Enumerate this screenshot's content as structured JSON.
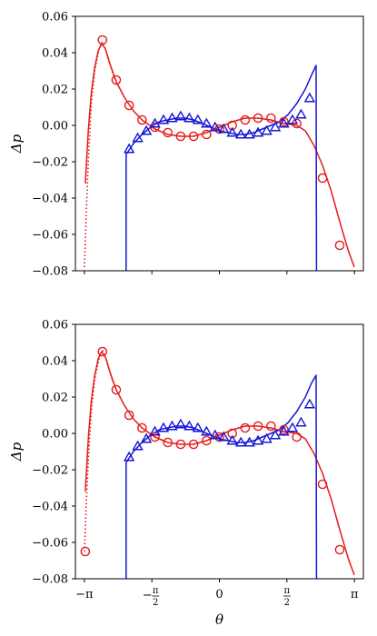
{
  "colors": {
    "red": "#e8191b",
    "blue": "#1515d6",
    "axis": "#000000"
  },
  "chart_data": [
    {
      "type": "line",
      "xlabel": "",
      "ylabel": "Δp",
      "xlim": [
        -3.35,
        3.35
      ],
      "ylim": [
        -0.08,
        0.06
      ],
      "yticks": [
        -0.08,
        -0.06,
        -0.04,
        -0.02,
        0.0,
        0.02,
        0.04,
        0.06
      ],
      "ytick_labels": [
        "−0.08",
        "−0.06",
        "−0.04",
        "−0.02",
        "0.00",
        "0.02",
        "0.04",
        "0.06"
      ],
      "xticks": [
        -3.1416,
        -1.5708,
        0,
        1.5708,
        3.1416
      ],
      "xtick_labels": [
        "",
        "",
        "",
        "",
        ""
      ],
      "grid": false,
      "series": [
        {
          "color": "red",
          "style": "solid",
          "marker": null,
          "x": [
            -3.12,
            -3.05,
            -2.98,
            -2.9,
            -2.82,
            -2.74,
            -2.65,
            -2.55,
            -2.4,
            -2.2,
            -2.0,
            -1.8,
            -1.5,
            -1.2,
            -0.9,
            -0.6,
            -0.3,
            0.0,
            0.3,
            0.6,
            0.9,
            1.2,
            1.5,
            1.8,
            2.0,
            2.2,
            2.4,
            2.6,
            2.8,
            3.0,
            3.14
          ],
          "y": [
            -0.032,
            -0.003,
            0.018,
            0.032,
            0.041,
            0.045,
            0.042,
            0.034,
            0.024,
            0.015,
            0.008,
            0.003,
            -0.002,
            -0.005,
            -0.006,
            -0.006,
            -0.004,
            -0.001,
            0.002,
            0.004,
            0.004,
            0.003,
            0.001,
            0.0,
            -0.003,
            -0.011,
            -0.022,
            -0.036,
            -0.053,
            -0.069,
            -0.078
          ]
        },
        {
          "color": "red",
          "style": "dotted",
          "marker": null,
          "x": [
            -3.14,
            -3.1,
            -3.05,
            -2.98,
            -2.9,
            -2.8,
            -2.72,
            -2.62,
            -2.5,
            -2.4
          ],
          "y": [
            -0.078,
            -0.05,
            -0.02,
            0.012,
            0.03,
            0.042,
            0.046,
            0.04,
            0.03,
            0.024
          ]
        },
        {
          "color": "red",
          "style": "none",
          "marker": "circle",
          "x": [
            -2.72,
            -2.4,
            -2.1,
            -1.8,
            -1.5,
            -1.2,
            -0.9,
            -0.6,
            -0.3,
            0.0,
            0.3,
            0.6,
            0.9,
            1.2,
            1.5,
            1.8,
            2.4,
            2.8
          ],
          "y": [
            0.047,
            0.025,
            0.011,
            0.003,
            -0.001,
            -0.004,
            -0.006,
            -0.006,
            -0.005,
            -0.002,
            0.0,
            0.003,
            0.004,
            0.004,
            0.002,
            0.001,
            -0.029,
            -0.066
          ]
        },
        {
          "color": "blue",
          "style": "solid",
          "marker": null,
          "x": [
            -2.17,
            -2.17,
            -2.0,
            -1.8,
            -1.6,
            -1.4,
            -1.2,
            -1.0,
            -0.8,
            -0.6,
            -0.4,
            -0.2,
            0.0,
            0.2,
            0.4,
            0.6,
            0.8,
            1.0,
            1.2,
            1.4,
            1.6,
            1.8,
            2.0,
            2.15,
            2.25,
            2.26
          ],
          "y": [
            -0.08,
            -0.016,
            -0.01,
            -0.005,
            -0.001,
            0.002,
            0.003,
            0.004,
            0.004,
            0.003,
            0.001,
            -0.001,
            -0.003,
            -0.004,
            -0.005,
            -0.005,
            -0.004,
            -0.002,
            0.0,
            0.002,
            0.006,
            0.012,
            0.02,
            0.028,
            0.033,
            -0.08
          ]
        },
        {
          "color": "blue",
          "style": "none",
          "marker": "triangle",
          "x": [
            -2.1,
            -1.9,
            -1.7,
            -1.5,
            -1.3,
            -1.1,
            -0.9,
            -0.7,
            -0.5,
            -0.3,
            -0.1,
            0.1,
            0.3,
            0.5,
            0.7,
            0.9,
            1.1,
            1.3,
            1.5,
            1.7,
            1.9,
            2.1
          ],
          "y": [
            -0.013,
            -0.007,
            -0.003,
            0.001,
            0.003,
            0.004,
            0.005,
            0.004,
            0.003,
            0.001,
            -0.001,
            -0.002,
            -0.004,
            -0.005,
            -0.005,
            -0.004,
            -0.003,
            -0.001,
            0.001,
            0.003,
            0.006,
            0.015
          ]
        }
      ]
    },
    {
      "type": "line",
      "xlabel": "θ",
      "ylabel": "Δp",
      "xlim": [
        -3.35,
        3.35
      ],
      "ylim": [
        -0.08,
        0.06
      ],
      "yticks": [
        -0.08,
        -0.06,
        -0.04,
        -0.02,
        0.0,
        0.02,
        0.04,
        0.06
      ],
      "ytick_labels": [
        "−0.08",
        "−0.06",
        "−0.04",
        "−0.02",
        "0.00",
        "0.02",
        "0.04",
        "0.06"
      ],
      "xticks": [
        -3.1416,
        -1.5708,
        0,
        1.5708,
        3.1416
      ],
      "xtick_labels": [
        "−π",
        "−π/2",
        "0",
        "π/2",
        "π"
      ],
      "grid": false,
      "series": [
        {
          "color": "red",
          "style": "solid",
          "marker": null,
          "x": [
            -3.12,
            -3.05,
            -2.98,
            -2.9,
            -2.82,
            -2.74,
            -2.65,
            -2.55,
            -2.4,
            -2.2,
            -2.0,
            -1.8,
            -1.5,
            -1.2,
            -0.9,
            -0.6,
            -0.3,
            0.0,
            0.3,
            0.6,
            0.9,
            1.2,
            1.5,
            1.8,
            2.0,
            2.2,
            2.4,
            2.6,
            2.8,
            3.0,
            3.14
          ],
          "y": [
            -0.032,
            -0.003,
            0.018,
            0.032,
            0.041,
            0.045,
            0.042,
            0.034,
            0.024,
            0.015,
            0.008,
            0.003,
            -0.002,
            -0.005,
            -0.006,
            -0.006,
            -0.004,
            -0.001,
            0.002,
            0.004,
            0.004,
            0.003,
            0.001,
            0.0,
            -0.003,
            -0.011,
            -0.022,
            -0.036,
            -0.053,
            -0.069,
            -0.078
          ]
        },
        {
          "color": "red",
          "style": "dotted",
          "marker": null,
          "x": [
            -3.14,
            -3.1,
            -3.05,
            -2.98,
            -2.9,
            -2.8,
            -2.72,
            -2.62,
            -2.5,
            -2.4
          ],
          "y": [
            -0.065,
            -0.04,
            -0.015,
            0.012,
            0.03,
            0.041,
            0.046,
            0.04,
            0.03,
            0.024
          ]
        },
        {
          "color": "red",
          "style": "none",
          "marker": "circle",
          "x": [
            -3.12,
            -2.72,
            -2.4,
            -2.1,
            -1.8,
            -1.5,
            -1.2,
            -0.9,
            -0.6,
            -0.3,
            0.0,
            0.3,
            0.6,
            0.9,
            1.2,
            1.5,
            1.8,
            2.4,
            2.8
          ],
          "y": [
            -0.065,
            0.045,
            0.024,
            0.01,
            0.003,
            -0.002,
            -0.005,
            -0.006,
            -0.006,
            -0.004,
            -0.002,
            0.0,
            0.003,
            0.004,
            0.004,
            0.002,
            -0.002,
            -0.028,
            -0.064
          ]
        },
        {
          "color": "blue",
          "style": "solid",
          "marker": null,
          "x": [
            -2.17,
            -2.17,
            -2.0,
            -1.8,
            -1.6,
            -1.4,
            -1.2,
            -1.0,
            -0.8,
            -0.6,
            -0.4,
            -0.2,
            0.0,
            0.2,
            0.4,
            0.6,
            0.8,
            1.0,
            1.2,
            1.4,
            1.6,
            1.8,
            2.0,
            2.15,
            2.25,
            2.26
          ],
          "y": [
            -0.08,
            -0.016,
            -0.01,
            -0.005,
            -0.001,
            0.002,
            0.003,
            0.004,
            0.004,
            0.003,
            0.001,
            -0.001,
            -0.003,
            -0.004,
            -0.005,
            -0.005,
            -0.004,
            -0.002,
            0.0,
            0.002,
            0.006,
            0.012,
            0.02,
            0.028,
            0.032,
            -0.08
          ]
        },
        {
          "color": "blue",
          "style": "none",
          "marker": "triangle",
          "x": [
            -2.1,
            -1.9,
            -1.7,
            -1.5,
            -1.3,
            -1.1,
            -0.9,
            -0.7,
            -0.5,
            -0.3,
            -0.1,
            0.1,
            0.3,
            0.5,
            0.7,
            0.9,
            1.1,
            1.3,
            1.5,
            1.7,
            1.9,
            2.1
          ],
          "y": [
            -0.013,
            -0.007,
            -0.003,
            0.001,
            0.003,
            0.004,
            0.005,
            0.004,
            0.003,
            0.001,
            -0.001,
            -0.002,
            -0.004,
            -0.005,
            -0.005,
            -0.004,
            -0.003,
            -0.001,
            0.001,
            0.003,
            0.006,
            0.016
          ]
        }
      ]
    }
  ]
}
